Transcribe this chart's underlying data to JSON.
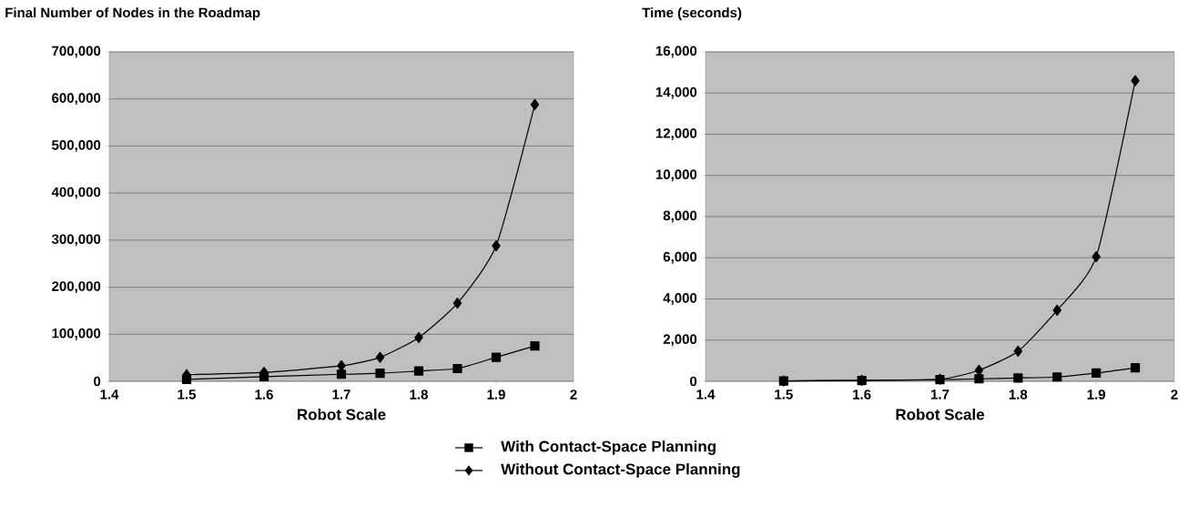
{
  "chart_data": [
    {
      "type": "line",
      "title": "Final Number of Nodes in the Roadmap",
      "xlabel": "Robot Scale",
      "x": [
        1.5,
        1.6,
        1.7,
        1.75,
        1.8,
        1.85,
        1.9,
        1.95
      ],
      "series": [
        {
          "name": "With Contact-Space Planning",
          "color": "#000000",
          "marker": "square",
          "values": [
            4000,
            10000,
            15000,
            17000,
            22000,
            27000,
            51000,
            75000
          ]
        },
        {
          "name": "Without Contact-Space Planning",
          "color": "#000000",
          "marker": "diamond",
          "values": [
            14000,
            19000,
            33000,
            51000,
            93000,
            166000,
            288000,
            588000
          ]
        }
      ],
      "xlim": [
        1.4,
        2
      ],
      "xticks": [
        1.4,
        1.5,
        1.6,
        1.7,
        1.8,
        1.9,
        2
      ],
      "ylim": [
        0,
        700000
      ],
      "yticks": [
        {
          "value": 0,
          "label": "0"
        },
        {
          "value": 100000,
          "label": "100,000"
        },
        {
          "value": 200000,
          "label": "200,000"
        },
        {
          "value": 300000,
          "label": "300,000"
        },
        {
          "value": 400000,
          "label": "400,000"
        },
        {
          "value": 500000,
          "label": "500,000"
        },
        {
          "value": 600000,
          "label": "600,000"
        },
        {
          "value": 700000,
          "label": "700,000"
        }
      ],
      "grid": "y",
      "legend": "bottom"
    },
    {
      "type": "line",
      "title": "Time (seconds)",
      "xlabel": "Robot Scale",
      "x": [
        1.5,
        1.6,
        1.7,
        1.75,
        1.8,
        1.85,
        1.9,
        1.95
      ],
      "series": [
        {
          "color": "#000000",
          "marker": "square",
          "values": [
            20,
            40,
            80,
            120,
            160,
            210,
            400,
            660
          ]
        },
        {
          "color": "#000000",
          "marker": "diamond",
          "values": [
            20,
            50,
            100,
            540,
            1460,
            3450,
            6050,
            14600
          ]
        }
      ],
      "xlim": [
        1.4,
        2
      ],
      "xticks": [
        1.4,
        1.5,
        1.6,
        1.7,
        1.8,
        1.9,
        2
      ],
      "ylim": [
        0,
        16000
      ],
      "yticks": [
        {
          "value": 0,
          "label": "0"
        },
        {
          "value": 2000,
          "label": "2,000"
        },
        {
          "value": 4000,
          "label": "4,000"
        },
        {
          "value": 6000,
          "label": "6,000"
        },
        {
          "value": 8000,
          "label": "8,000"
        },
        {
          "value": 10000,
          "label": "10,000"
        },
        {
          "value": 12000,
          "label": "12,000"
        },
        {
          "value": 14000,
          "label": "14,000"
        },
        {
          "value": 16000,
          "label": "16,000"
        }
      ],
      "grid": "y",
      "legend": false
    }
  ]
}
